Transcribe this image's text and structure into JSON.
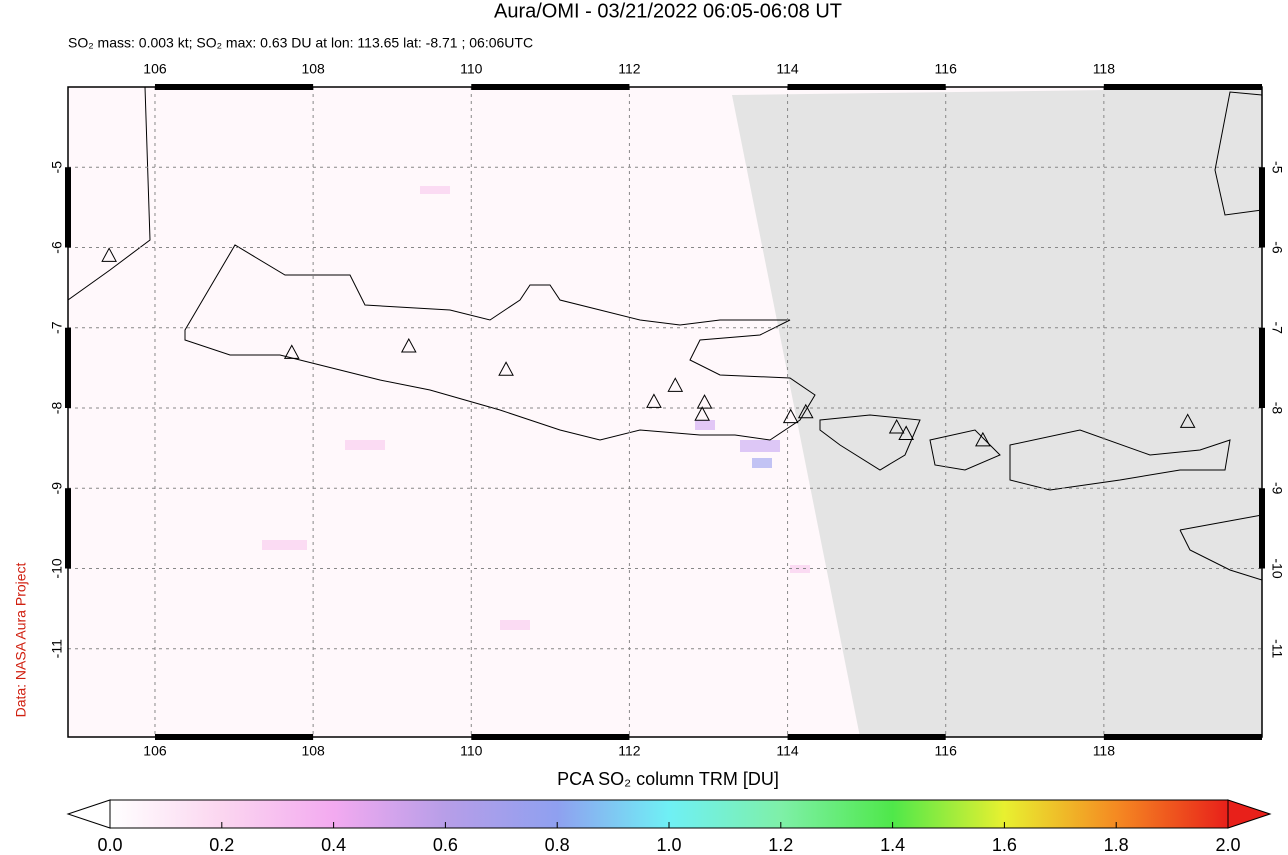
{
  "title": "Aura/OMI - 03/21/2022 06:05-06:08 UT",
  "subtitle": "SO₂ mass: 0.003 kt; SO₂ max: 0.63 DU at lon: 113.65 lat: -8.71 ; 06:06UTC",
  "credit": "Data: NASA Aura Project",
  "map": {
    "xlim": [
      104.9,
      120
    ],
    "ylim": [
      -12.1,
      -4
    ],
    "xticks": [
      106,
      108,
      110,
      112,
      114,
      116,
      118
    ],
    "yticks": [
      -5,
      -6,
      -7,
      -8,
      -9,
      -10,
      -11
    ],
    "volcanoes": [
      [
        105.42,
        -6.11
      ],
      [
        107.73,
        -7.32
      ],
      [
        109.21,
        -7.24
      ],
      [
        110.44,
        -7.53
      ],
      [
        112.31,
        -7.93
      ],
      [
        112.58,
        -7.73
      ],
      [
        112.95,
        -7.94
      ],
      [
        112.92,
        -8.09
      ],
      [
        114.04,
        -8.12
      ],
      [
        114.23,
        -8.06
      ],
      [
        115.38,
        -8.25
      ],
      [
        115.5,
        -8.33
      ],
      [
        116.47,
        -8.41
      ],
      [
        119.06,
        -8.18
      ]
    ]
  },
  "colorbar": {
    "label": "PCA SO₂ column TRM [DU]",
    "lim": [
      0,
      2
    ],
    "ticks": [
      {
        "value": 0,
        "label": "0.0"
      },
      {
        "value": 0.2,
        "label": "0.2"
      },
      {
        "value": 0.4,
        "label": "0.4"
      },
      {
        "value": 0.6,
        "label": "0.6"
      },
      {
        "value": 0.8,
        "label": "0.8"
      },
      {
        "value": 1,
        "label": "1.0"
      },
      {
        "value": 1.2,
        "label": "1.2"
      },
      {
        "value": 1.4,
        "label": "1.4"
      },
      {
        "value": 1.6,
        "label": "1.6"
      },
      {
        "value": 1.8,
        "label": "1.8"
      },
      {
        "value": 2,
        "label": "2.0"
      }
    ]
  }
}
